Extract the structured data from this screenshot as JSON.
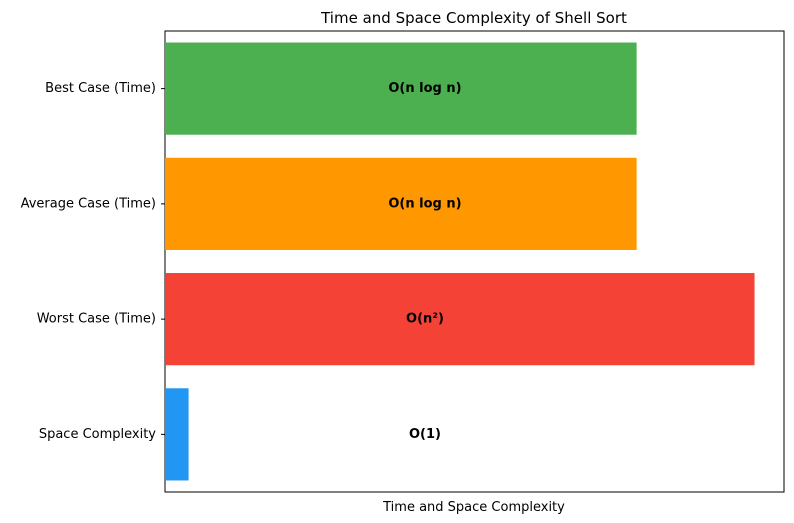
{
  "chart_data": {
    "type": "bar",
    "orientation": "horizontal",
    "title": "Time and Space Complexity of Shell Sort",
    "xlabel": "Time and Space Complexity",
    "ylabel": "",
    "x_ticks_visible": false,
    "grid": false,
    "legend": "none",
    "xlim": [
      0,
      10.5
    ],
    "categories": [
      "Best Case (Time)",
      "Average Case (Time)",
      "Worst Case (Time)",
      "Space Complexity"
    ],
    "values": [
      8,
      8,
      10,
      0.4
    ],
    "bar_labels": [
      "O(n log n)",
      "O(n log n)",
      "O(n²)",
      "O(1)"
    ],
    "colors": [
      "#4caf50",
      "#ff9800",
      "#f44336",
      "#2196f3"
    ]
  }
}
